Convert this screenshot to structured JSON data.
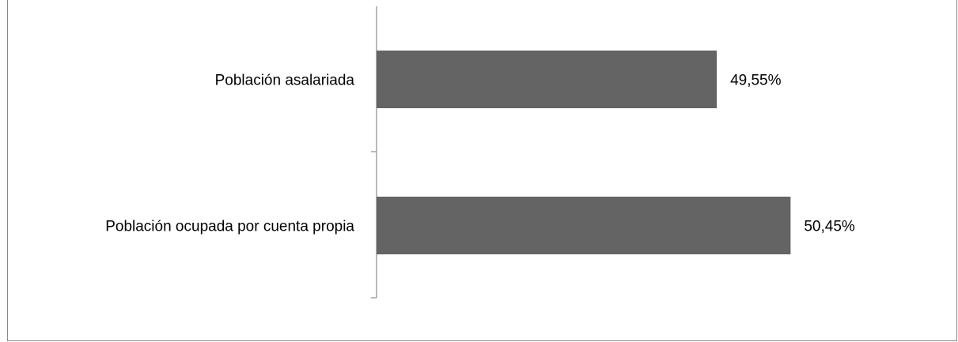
{
  "chart_data": {
    "type": "bar",
    "orientation": "horizontal",
    "categories": [
      "Población asalariada",
      "Población ocupada por cuenta propia"
    ],
    "values": [
      49.55,
      50.45
    ],
    "data_labels": [
      "49,55%",
      "50,45%"
    ],
    "xlim": [
      45.4,
      52.0
    ],
    "bar_color": "#646464",
    "axis_color": "#8a8a8a",
    "grid": false,
    "legend": "none",
    "title": "",
    "xlabel": "",
    "ylabel": ""
  }
}
